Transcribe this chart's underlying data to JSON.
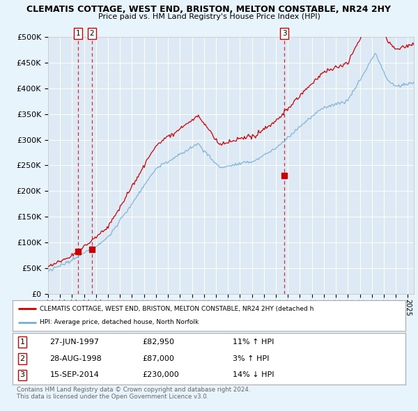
{
  "title": "CLEMATIS COTTAGE, WEST END, BRISTON, MELTON CONSTABLE, NR24 2HY",
  "subtitle": "Price paid vs. HM Land Registry's House Price Index (HPI)",
  "background_color": "#e8f4fb",
  "plot_bg_color": "#ddeaf5",
  "ylim": [
    0,
    500000
  ],
  "yticks": [
    0,
    50000,
    100000,
    150000,
    200000,
    250000,
    300000,
    350000,
    400000,
    450000,
    500000
  ],
  "xlim_start": 1995.0,
  "xlim_end": 2025.5,
  "sale_dates": [
    1997.49,
    1998.66,
    2014.71
  ],
  "sale_prices": [
    82950,
    87000,
    230000
  ],
  "sale_labels": [
    "1",
    "2",
    "3"
  ],
  "legend_red": "CLEMATIS COTTAGE, WEST END, BRISTON, MELTON CONSTABLE, NR24 2HY (detached h",
  "legend_blue": "HPI: Average price, detached house, North Norfolk",
  "table_data": [
    [
      "1",
      "27-JUN-1997",
      "£82,950",
      "11% ↑ HPI"
    ],
    [
      "2",
      "28-AUG-1998",
      "£87,000",
      "3% ↑ HPI"
    ],
    [
      "3",
      "15-SEP-2014",
      "£230,000",
      "14% ↓ HPI"
    ]
  ],
  "footer": "Contains HM Land Registry data © Crown copyright and database right 2024.\nThis data is licensed under the Open Government Licence v3.0.",
  "grid_color": "#ffffff",
  "red_color": "#cc0000",
  "blue_color": "#7aaed0",
  "dashed_color": "#cc0000"
}
